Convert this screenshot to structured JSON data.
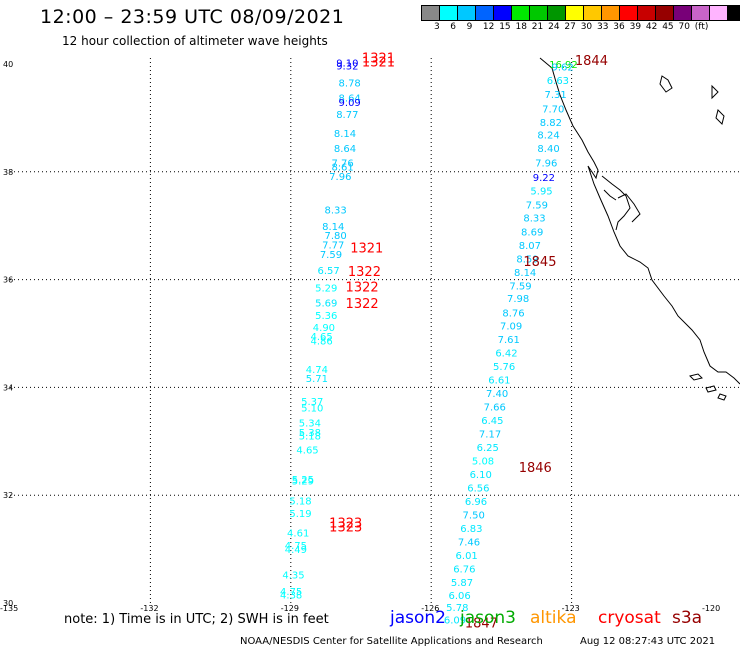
{
  "header": {
    "title": "12:00 – 23:59 UTC 08/09/2021",
    "subtitle": "12 hour collection of altimeter wave heights"
  },
  "color_scale": {
    "colors": [
      "#888888",
      "#00ffff",
      "#00c8ff",
      "#0064ff",
      "#0000ff",
      "#00e800",
      "#00c800",
      "#009600",
      "#ffff00",
      "#ffc800",
      "#ff9600",
      "#ff0000",
      "#c80000",
      "#960000",
      "#780078",
      "#c864c8",
      "#ffb4ff",
      "#000000"
    ],
    "labels": [
      "3",
      "6",
      "9",
      "12",
      "15",
      "18",
      "21",
      "24",
      "27",
      "30",
      "33",
      "36",
      "39",
      "42",
      "45",
      "70",
      "(ft)"
    ]
  },
  "axes": {
    "lat_labels": [
      "40",
      "38",
      "36",
      "34",
      "32",
      "30"
    ],
    "lon_labels": [
      "-135",
      "-132",
      "-129",
      "-126",
      "-123",
      "-120"
    ]
  },
  "tracks": {
    "left": [
      {
        "lat": 39.95,
        "lon": -128.03,
        "v": "9.10",
        "c": "#0000ff"
      },
      {
        "lat": 39.9,
        "lon": -128.03,
        "v": "9.32",
        "c": "#0000ff"
      },
      {
        "lat": 39.58,
        "lon": -127.98,
        "v": "8.78",
        "c": "#00c8ff"
      },
      {
        "lat": 39.3,
        "lon": -127.98,
        "v": "8.64",
        "c": "#00c8ff"
      },
      {
        "lat": 39.22,
        "lon": -127.98,
        "v": "9.09",
        "c": "#0000ff"
      },
      {
        "lat": 39.0,
        "lon": -128.03,
        "v": "8.77",
        "c": "#00c8ff"
      },
      {
        "lat": 38.65,
        "lon": -128.08,
        "v": "8.14",
        "c": "#00c8ff"
      },
      {
        "lat": 38.37,
        "lon": -128.08,
        "v": "8.64",
        "c": "#00c8ff"
      },
      {
        "lat": 38.1,
        "lon": -128.13,
        "v": "7.76",
        "c": "#00c8ff"
      },
      {
        "lat": 38.02,
        "lon": -128.13,
        "v": "8.61",
        "c": "#00c8ff"
      },
      {
        "lat": 37.85,
        "lon": -128.18,
        "v": "7.96",
        "c": "#00c8ff"
      },
      {
        "lat": 37.23,
        "lon": -128.28,
        "v": "8.33",
        "c": "#00c8ff"
      },
      {
        "lat": 36.92,
        "lon": -128.33,
        "v": "8.14",
        "c": "#00c8ff"
      },
      {
        "lat": 36.75,
        "lon": -128.28,
        "v": "7.80",
        "c": "#00c8ff"
      },
      {
        "lat": 36.58,
        "lon": -128.33,
        "v": "7.77",
        "c": "#00c8ff"
      },
      {
        "lat": 36.4,
        "lon": -128.38,
        "v": "7.59",
        "c": "#00c8ff"
      },
      {
        "lat": 36.1,
        "lon": -128.43,
        "v": "6.57",
        "c": "#00e8ff"
      },
      {
        "lat": 35.78,
        "lon": -128.48,
        "v": "5.29",
        "c": "#00ffff"
      },
      {
        "lat": 35.5,
        "lon": -128.48,
        "v": "5.69",
        "c": "#00e8ff"
      },
      {
        "lat": 35.27,
        "lon": -128.48,
        "v": "5.36",
        "c": "#00ffff"
      },
      {
        "lat": 35.05,
        "lon": -128.53,
        "v": "4.90",
        "c": "#00ffff"
      },
      {
        "lat": 34.88,
        "lon": -128.58,
        "v": "4.65",
        "c": "#00ffff"
      },
      {
        "lat": 34.8,
        "lon": -128.58,
        "v": "4.86",
        "c": "#00ffff"
      },
      {
        "lat": 34.27,
        "lon": -128.68,
        "v": "4.74",
        "c": "#00ffff"
      },
      {
        "lat": 34.1,
        "lon": -128.68,
        "v": "5.71",
        "c": "#00e8ff"
      },
      {
        "lat": 33.67,
        "lon": -128.78,
        "v": "5.37",
        "c": "#00ffff"
      },
      {
        "lat": 33.55,
        "lon": -128.78,
        "v": "5.10",
        "c": "#00ffff"
      },
      {
        "lat": 33.27,
        "lon": -128.83,
        "v": "5.34",
        "c": "#00ffff"
      },
      {
        "lat": 33.1,
        "lon": -128.83,
        "v": "5.38",
        "c": "#00ffff"
      },
      {
        "lat": 33.03,
        "lon": -128.83,
        "v": "5.18",
        "c": "#00ffff"
      },
      {
        "lat": 32.77,
        "lon": -128.88,
        "v": "4.65",
        "c": "#00ffff"
      },
      {
        "lat": 32.23,
        "lon": -128.98,
        "v": "5.25",
        "c": "#00ffff"
      },
      {
        "lat": 32.2,
        "lon": -128.98,
        "v": "5.29",
        "c": "#00ffff"
      },
      {
        "lat": 31.83,
        "lon": -129.03,
        "v": "5.18",
        "c": "#00ffff"
      },
      {
        "lat": 31.6,
        "lon": -129.03,
        "v": "5.19",
        "c": "#00ffff"
      },
      {
        "lat": 31.23,
        "lon": -129.08,
        "v": "4.61",
        "c": "#00ffff"
      },
      {
        "lat": 31.0,
        "lon": -129.13,
        "v": "4.75",
        "c": "#00ffff"
      },
      {
        "lat": 30.93,
        "lon": -129.13,
        "v": "4.49",
        "c": "#00ffff"
      },
      {
        "lat": 30.45,
        "lon": -129.18,
        "v": "4.35",
        "c": "#00ffff"
      },
      {
        "lat": 30.15,
        "lon": -129.23,
        "v": "4.75",
        "c": "#00ffff"
      },
      {
        "lat": 30.08,
        "lon": -129.23,
        "v": "4.38",
        "c": "#00ffff"
      }
    ],
    "right": [
      {
        "lat": 39.93,
        "lon": -123.48,
        "v": "16.92",
        "c": "#00e800"
      },
      {
        "lat": 39.88,
        "lon": -123.43,
        "v": "9.62",
        "c": "#00c8ff"
      },
      {
        "lat": 39.63,
        "lon": -123.53,
        "v": "6.63",
        "c": "#00e8ff"
      },
      {
        "lat": 39.37,
        "lon": -123.58,
        "v": "7.31",
        "c": "#00c8ff"
      },
      {
        "lat": 39.1,
        "lon": -123.63,
        "v": "7.70",
        "c": "#00c8ff"
      },
      {
        "lat": 38.85,
        "lon": -123.68,
        "v": "8.82",
        "c": "#00c8ff"
      },
      {
        "lat": 38.62,
        "lon": -123.73,
        "v": "8.24",
        "c": "#00c8ff"
      },
      {
        "lat": 38.37,
        "lon": -123.73,
        "v": "8.40",
        "c": "#00c8ff"
      },
      {
        "lat": 38.1,
        "lon": -123.78,
        "v": "7.96",
        "c": "#00c8ff"
      },
      {
        "lat": 37.83,
        "lon": -123.83,
        "v": "9.22",
        "c": "#0000ff"
      },
      {
        "lat": 37.58,
        "lon": -123.88,
        "v": "5.95",
        "c": "#00e8ff"
      },
      {
        "lat": 37.32,
        "lon": -123.98,
        "v": "7.59",
        "c": "#00c8ff"
      },
      {
        "lat": 37.08,
        "lon": -124.03,
        "v": "8.33",
        "c": "#00c8ff"
      },
      {
        "lat": 36.82,
        "lon": -124.08,
        "v": "8.69",
        "c": "#00c8ff"
      },
      {
        "lat": 36.57,
        "lon": -124.13,
        "v": "8.07",
        "c": "#00c8ff"
      },
      {
        "lat": 36.32,
        "lon": -124.18,
        "v": "8.59",
        "c": "#00c8ff"
      },
      {
        "lat": 36.07,
        "lon": -124.23,
        "v": "8.14",
        "c": "#00c8ff"
      },
      {
        "lat": 35.82,
        "lon": -124.33,
        "v": "7.59",
        "c": "#00c8ff"
      },
      {
        "lat": 35.58,
        "lon": -124.38,
        "v": "7.98",
        "c": "#00c8ff"
      },
      {
        "lat": 35.32,
        "lon": -124.48,
        "v": "8.76",
        "c": "#00c8ff"
      },
      {
        "lat": 35.07,
        "lon": -124.53,
        "v": "7.09",
        "c": "#00c8ff"
      },
      {
        "lat": 34.82,
        "lon": -124.58,
        "v": "7.61",
        "c": "#00c8ff"
      },
      {
        "lat": 34.57,
        "lon": -124.63,
        "v": "6.42",
        "c": "#00e8ff"
      },
      {
        "lat": 34.32,
        "lon": -124.68,
        "v": "5.76",
        "c": "#00e8ff"
      },
      {
        "lat": 34.07,
        "lon": -124.78,
        "v": "6.61",
        "c": "#00e8ff"
      },
      {
        "lat": 33.82,
        "lon": -124.83,
        "v": "7.40",
        "c": "#00c8ff"
      },
      {
        "lat": 33.57,
        "lon": -124.88,
        "v": "7.66",
        "c": "#00c8ff"
      },
      {
        "lat": 33.32,
        "lon": -124.93,
        "v": "6.45",
        "c": "#00e8ff"
      },
      {
        "lat": 33.07,
        "lon": -124.98,
        "v": "7.17",
        "c": "#00c8ff"
      },
      {
        "lat": 32.82,
        "lon": -125.03,
        "v": "6.25",
        "c": "#00e8ff"
      },
      {
        "lat": 32.57,
        "lon": -125.13,
        "v": "5.08",
        "c": "#00ffff"
      },
      {
        "lat": 32.32,
        "lon": -125.18,
        "v": "6.10",
        "c": "#00e8ff"
      },
      {
        "lat": 32.07,
        "lon": -125.23,
        "v": "6.56",
        "c": "#00e8ff"
      },
      {
        "lat": 31.82,
        "lon": -125.28,
        "v": "6.96",
        "c": "#00e8ff"
      },
      {
        "lat": 31.57,
        "lon": -125.33,
        "v": "7.50",
        "c": "#00c8ff"
      },
      {
        "lat": 31.32,
        "lon": -125.38,
        "v": "6.83",
        "c": "#00e8ff"
      },
      {
        "lat": 31.07,
        "lon": -125.43,
        "v": "7.46",
        "c": "#00c8ff"
      },
      {
        "lat": 30.82,
        "lon": -125.48,
        "v": "6.01",
        "c": "#00e8ff"
      },
      {
        "lat": 30.57,
        "lon": -125.53,
        "v": "6.76",
        "c": "#00e8ff"
      },
      {
        "lat": 30.32,
        "lon": -125.58,
        "v": "5.87",
        "c": "#00e8ff"
      },
      {
        "lat": 30.07,
        "lon": -125.63,
        "v": "6.06",
        "c": "#00e8ff"
      },
      {
        "lat": 29.85,
        "lon": -125.68,
        "v": "5.78",
        "c": "#00e8ff"
      },
      {
        "lat": 29.62,
        "lon": -125.73,
        "v": "6.09",
        "c": "#00e8ff"
      }
    ]
  },
  "time_labels": [
    {
      "lat": 40.03,
      "lon": -127.48,
      "t": "1321",
      "c": "#ff0000"
    },
    {
      "lat": 39.95,
      "lon": -127.48,
      "t": "1321",
      "c": "#ff0000"
    },
    {
      "lat": 39.98,
      "lon": -122.93,
      "t": "1844",
      "c": "#960000"
    },
    {
      "lat": 36.5,
      "lon": -127.73,
      "t": "1321",
      "c": "#ff0000"
    },
    {
      "lat": 36.25,
      "lon": -124.03,
      "t": "1845",
      "c": "#960000"
    },
    {
      "lat": 36.07,
      "lon": -127.78,
      "t": "1322",
      "c": "#ff0000"
    },
    {
      "lat": 35.78,
      "lon": -127.83,
      "t": "1322",
      "c": "#ff0000"
    },
    {
      "lat": 35.47,
      "lon": -127.83,
      "t": "1322",
      "c": "#ff0000"
    },
    {
      "lat": 32.43,
      "lon": -124.13,
      "t": "1846",
      "c": "#960000"
    },
    {
      "lat": 31.4,
      "lon": -128.18,
      "t": "1323",
      "c": "#ff0000"
    },
    {
      "lat": 31.33,
      "lon": -128.18,
      "t": "1323",
      "c": "#ff0000"
    },
    {
      "lat": 29.55,
      "lon": -125.28,
      "t": "1847",
      "c": "#960000"
    }
  ],
  "footer": {
    "note": "note: 1) Time is in UTC; 2) SWH is in feet",
    "satellites": [
      {
        "name": "jason2",
        "c": "#0000ff"
      },
      {
        "name": "jason3",
        "c": "#00aa00"
      },
      {
        "name": "altika",
        "c": "#ff9600"
      },
      {
        "name": "cryosat",
        "c": "#ff0000"
      },
      {
        "name": "s3a",
        "c": "#960000"
      }
    ],
    "credit": "NOAA/NESDIS Center for Satellite Applications and Research",
    "timestamp": "Aug 12 08:27:43 UTC 2021"
  }
}
